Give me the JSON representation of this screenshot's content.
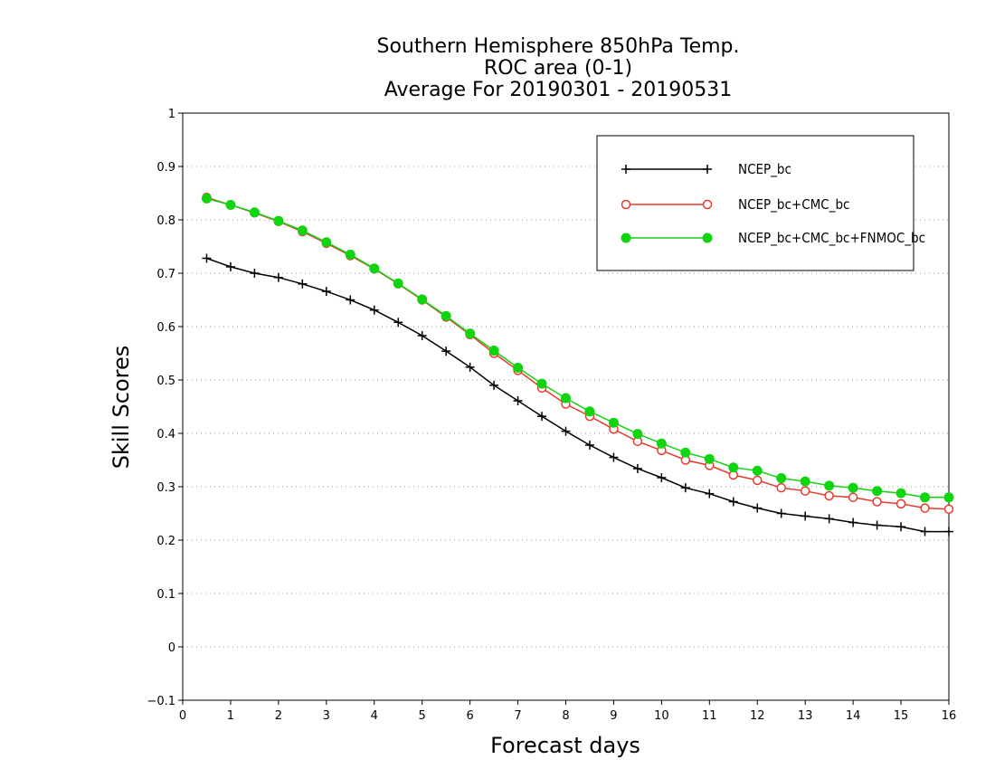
{
  "chart_data": {
    "type": "line",
    "title_lines": [
      "Southern Hemisphere 850hPa Temp.",
      "ROC area (0-1)",
      "Average For 20190301 - 20190531"
    ],
    "xlabel": "Forecast days",
    "ylabel": "Skill Scores",
    "xlim": [
      0,
      16
    ],
    "ylim": [
      -0.1,
      1
    ],
    "x_ticks": [
      "0",
      "1",
      "2",
      "3",
      "4",
      "5",
      "6",
      "7",
      "8",
      "9",
      "10",
      "11",
      "12",
      "13",
      "14",
      "15",
      "16"
    ],
    "y_ticks": [
      "−0.1",
      "0",
      "0.1",
      "0.2",
      "0.3",
      "0.4",
      "0.5",
      "0.6",
      "0.7",
      "0.8",
      "0.9",
      "1"
    ],
    "grid": true,
    "legend_position": "top-right",
    "x": [
      0.5,
      1,
      1.5,
      2,
      2.5,
      3,
      3.5,
      4,
      4.5,
      5,
      5.5,
      6,
      6.5,
      7,
      7.5,
      8,
      8.5,
      9,
      9.5,
      10,
      10.5,
      11,
      11.5,
      12,
      12.5,
      13,
      13.5,
      14,
      14.5,
      15,
      15.5,
      16
    ],
    "series": [
      {
        "name": "NCEP_bc",
        "color": "#000000",
        "marker": "plus",
        "values": [
          0.728,
          0.712,
          0.7,
          0.692,
          0.68,
          0.666,
          0.65,
          0.631,
          0.608,
          0.583,
          0.554,
          0.524,
          0.49,
          0.461,
          0.432,
          0.404,
          0.378,
          0.355,
          0.334,
          0.317,
          0.298,
          0.287,
          0.272,
          0.26,
          0.25,
          0.245,
          0.24,
          0.233,
          0.228,
          0.225,
          0.216,
          0.216
        ]
      },
      {
        "name": "NCEP_bc+CMC_bc",
        "color": "#e8392f",
        "marker": "open-circle",
        "values": [
          0.842,
          0.828,
          0.813,
          0.797,
          0.778,
          0.756,
          0.733,
          0.708,
          0.68,
          0.65,
          0.618,
          0.585,
          0.55,
          0.518,
          0.485,
          0.455,
          0.432,
          0.408,
          0.385,
          0.368,
          0.35,
          0.34,
          0.322,
          0.312,
          0.298,
          0.292,
          0.283,
          0.28,
          0.272,
          0.268,
          0.26,
          0.258
        ]
      },
      {
        "name": "NCEP_bc+CMC_bc+FNMOC_bc",
        "color": "#11d411",
        "marker": "filled-circle",
        "values": [
          0.84,
          0.828,
          0.814,
          0.798,
          0.78,
          0.758,
          0.735,
          0.709,
          0.681,
          0.651,
          0.62,
          0.587,
          0.555,
          0.523,
          0.493,
          0.466,
          0.441,
          0.42,
          0.399,
          0.381,
          0.364,
          0.352,
          0.336,
          0.33,
          0.316,
          0.31,
          0.302,
          0.298,
          0.292,
          0.288,
          0.28,
          0.28
        ]
      }
    ]
  }
}
